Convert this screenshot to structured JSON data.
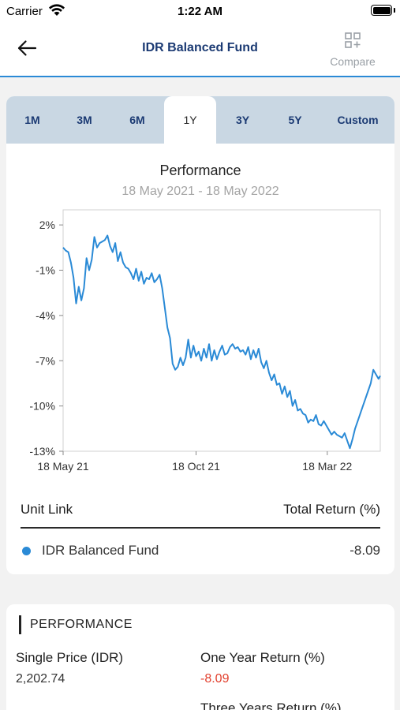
{
  "status_bar": {
    "carrier": "Carrier",
    "time": "1:22 AM"
  },
  "header": {
    "title": "IDR Balanced Fund",
    "compare_label": "Compare"
  },
  "tabs": [
    "1M",
    "3M",
    "6M",
    "1Y",
    "3Y",
    "5Y",
    "Custom"
  ],
  "active_tab": "1Y",
  "chart_data": {
    "type": "line",
    "title": "Performance",
    "subtitle": "18 May 2021 - 18 May 2022",
    "xlim": [
      "2021-05-18",
      "2022-05-18"
    ],
    "ylim": [
      -13,
      3
    ],
    "y_ticks": [
      "2%",
      "-1%",
      "-4%",
      "-7%",
      "-10%",
      "-13%"
    ],
    "y_tick_values": [
      2,
      -1,
      -4,
      -7,
      -10,
      -13
    ],
    "x_ticks": [
      "18 May 21",
      "18 Oct 21",
      "18 Mar 22"
    ],
    "x_tick_dates": [
      "2021-05-18",
      "2021-10-18",
      "2022-03-18"
    ],
    "grid": false,
    "color": "#2a8ad6",
    "series": [
      {
        "name": "IDR Balanced Fund",
        "points": [
          [
            "2021-05-18",
            0.5
          ],
          [
            "2021-05-21",
            0.3
          ],
          [
            "2021-05-24",
            0.2
          ],
          [
            "2021-05-27",
            -0.5
          ],
          [
            "2021-05-30",
            -1.5
          ],
          [
            "2021-06-02",
            -3.2
          ],
          [
            "2021-06-05",
            -2.1
          ],
          [
            "2021-06-08",
            -3.0
          ],
          [
            "2021-06-11",
            -2.2
          ],
          [
            "2021-06-14",
            -0.2
          ],
          [
            "2021-06-17",
            -1.0
          ],
          [
            "2021-06-20",
            -0.3
          ],
          [
            "2021-06-23",
            1.2
          ],
          [
            "2021-06-26",
            0.5
          ],
          [
            "2021-06-29",
            0.8
          ],
          [
            "2021-07-02",
            0.9
          ],
          [
            "2021-07-05",
            1.0
          ],
          [
            "2021-07-08",
            1.3
          ],
          [
            "2021-07-11",
            0.6
          ],
          [
            "2021-07-14",
            0.2
          ],
          [
            "2021-07-17",
            0.8
          ],
          [
            "2021-07-20",
            -0.4
          ],
          [
            "2021-07-23",
            0.2
          ],
          [
            "2021-07-26",
            -0.5
          ],
          [
            "2021-07-29",
            -0.8
          ],
          [
            "2021-08-01",
            -0.9
          ],
          [
            "2021-08-04",
            -1.2
          ],
          [
            "2021-08-07",
            -1.6
          ],
          [
            "2021-08-10",
            -0.9
          ],
          [
            "2021-08-13",
            -1.7
          ],
          [
            "2021-08-16",
            -1.1
          ],
          [
            "2021-08-19",
            -1.9
          ],
          [
            "2021-08-22",
            -1.5
          ],
          [
            "2021-08-25",
            -1.6
          ],
          [
            "2021-08-28",
            -1.2
          ],
          [
            "2021-08-31",
            -1.8
          ],
          [
            "2021-09-03",
            -1.6
          ],
          [
            "2021-09-06",
            -1.3
          ],
          [
            "2021-09-09",
            -2.2
          ],
          [
            "2021-09-12",
            -3.5
          ],
          [
            "2021-09-15",
            -4.8
          ],
          [
            "2021-09-18",
            -5.5
          ],
          [
            "2021-09-21",
            -7.2
          ],
          [
            "2021-09-24",
            -7.6
          ],
          [
            "2021-09-27",
            -7.4
          ],
          [
            "2021-09-30",
            -6.8
          ],
          [
            "2021-10-03",
            -7.3
          ],
          [
            "2021-10-06",
            -6.8
          ],
          [
            "2021-10-09",
            -5.6
          ],
          [
            "2021-10-12",
            -6.8
          ],
          [
            "2021-10-15",
            -6.0
          ],
          [
            "2021-10-18",
            -6.7
          ],
          [
            "2021-10-21",
            -6.4
          ],
          [
            "2021-10-24",
            -7.0
          ],
          [
            "2021-10-27",
            -6.2
          ],
          [
            "2021-10-30",
            -6.8
          ],
          [
            "2021-11-02",
            -5.9
          ],
          [
            "2021-11-05",
            -7.0
          ],
          [
            "2021-11-08",
            -6.3
          ],
          [
            "2021-11-11",
            -6.9
          ],
          [
            "2021-11-14",
            -6.4
          ],
          [
            "2021-11-17",
            -6.0
          ],
          [
            "2021-11-20",
            -6.6
          ],
          [
            "2021-11-23",
            -6.5
          ],
          [
            "2021-11-26",
            -6.1
          ],
          [
            "2021-11-29",
            -5.9
          ],
          [
            "2021-12-02",
            -6.2
          ],
          [
            "2021-12-05",
            -6.1
          ],
          [
            "2021-12-08",
            -6.4
          ],
          [
            "2021-12-11",
            -6.3
          ],
          [
            "2021-12-14",
            -6.6
          ],
          [
            "2021-12-17",
            -6.1
          ],
          [
            "2021-12-20",
            -6.9
          ],
          [
            "2021-12-23",
            -6.3
          ],
          [
            "2021-12-26",
            -6.8
          ],
          [
            "2021-12-29",
            -6.2
          ],
          [
            "2022-01-01",
            -7.1
          ],
          [
            "2022-01-04",
            -7.5
          ],
          [
            "2022-01-07",
            -7.0
          ],
          [
            "2022-01-10",
            -7.8
          ],
          [
            "2022-01-13",
            -8.3
          ],
          [
            "2022-01-16",
            -7.9
          ],
          [
            "2022-01-19",
            -8.6
          ],
          [
            "2022-01-22",
            -8.5
          ],
          [
            "2022-01-25",
            -9.2
          ],
          [
            "2022-01-28",
            -8.7
          ],
          [
            "2022-01-31",
            -9.4
          ],
          [
            "2022-02-03",
            -9.0
          ],
          [
            "2022-02-06",
            -10.0
          ],
          [
            "2022-02-09",
            -9.6
          ],
          [
            "2022-02-12",
            -10.3
          ],
          [
            "2022-02-15",
            -10.2
          ],
          [
            "2022-02-18",
            -10.5
          ],
          [
            "2022-02-21",
            -10.6
          ],
          [
            "2022-02-24",
            -11.1
          ],
          [
            "2022-02-27",
            -10.9
          ],
          [
            "2022-03-02",
            -11.0
          ],
          [
            "2022-03-05",
            -10.6
          ],
          [
            "2022-03-08",
            -11.2
          ],
          [
            "2022-03-11",
            -11.3
          ],
          [
            "2022-03-14",
            -11.0
          ],
          [
            "2022-03-17",
            -11.3
          ],
          [
            "2022-03-20",
            -11.6
          ],
          [
            "2022-03-23",
            -11.9
          ],
          [
            "2022-03-26",
            -11.7
          ],
          [
            "2022-03-29",
            -11.9
          ],
          [
            "2022-04-01",
            -12.0
          ],
          [
            "2022-04-04",
            -12.1
          ],
          [
            "2022-04-07",
            -11.8
          ],
          [
            "2022-04-10",
            -12.3
          ],
          [
            "2022-04-13",
            -12.8
          ],
          [
            "2022-04-16",
            -12.2
          ],
          [
            "2022-04-19",
            -11.5
          ],
          [
            "2022-04-22",
            -11.0
          ],
          [
            "2022-04-25",
            -10.5
          ],
          [
            "2022-04-28",
            -10.0
          ],
          [
            "2022-05-01",
            -9.5
          ],
          [
            "2022-05-04",
            -9.0
          ],
          [
            "2022-05-07",
            -8.5
          ],
          [
            "2022-05-10",
            -7.6
          ],
          [
            "2022-05-13",
            -7.9
          ],
          [
            "2022-05-16",
            -8.2
          ],
          [
            "2022-05-18",
            -8.0
          ]
        ]
      }
    ]
  },
  "legend": {
    "col_left": "Unit Link",
    "col_right": "Total Return (%)",
    "rows": [
      {
        "name": "IDR Balanced Fund",
        "value": "-8.09",
        "color": "#2a8ad6"
      }
    ]
  },
  "performance": {
    "heading": "PERFORMANCE",
    "fields": [
      {
        "label": "Single Price (IDR)",
        "value": "2,202.74",
        "negative": false
      },
      {
        "label": "One Year Return (%)",
        "value": "-8.09",
        "negative": true
      },
      {
        "label": "Three Years Return (%)",
        "value": "",
        "negative": false
      }
    ]
  }
}
